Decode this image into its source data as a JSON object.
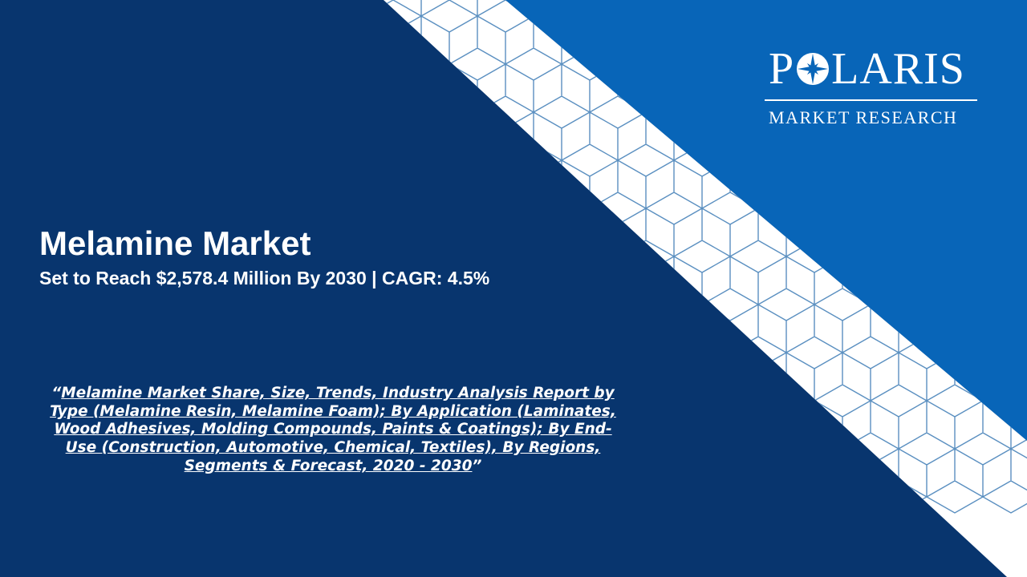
{
  "colors": {
    "navy": "#08356e",
    "blue": "#0865b8",
    "white": "#ffffff",
    "lattice": "#5a8fc0"
  },
  "logo": {
    "word_before": "P",
    "word_after": "LARIS",
    "tagline": "MARKET RESEARCH",
    "star_icon": "compass-star-icon"
  },
  "headline": {
    "title": "Melamine Market",
    "subtitle": "Set to Reach $2,578.4 Million By 2030 | CAGR: 4.5%"
  },
  "report": {
    "open_quote": "“",
    "link_text": "Melamine Market Share, Size, Trends, Industry Analysis Report by Type (Melamine Resin, Melamine Foam); By Application (Laminates, Wood Adhesives, Molding Compounds, Paints & Coatings); By End-Use (Construction, Automotive, Chemical, Textiles), By Regions, Segments & Forecast, 2020 - 2030",
    "close_quote": "”"
  }
}
